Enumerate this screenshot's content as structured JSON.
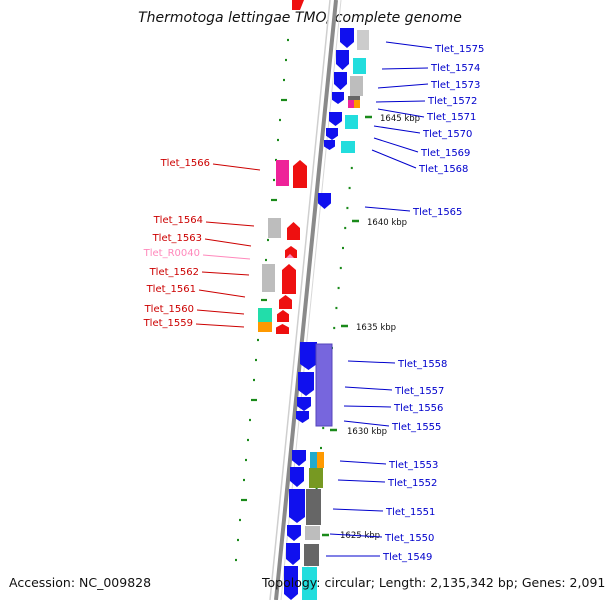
{
  "title": "Thermotoga lettingae TMO, complete genome",
  "accession": "Accession: NC_009828",
  "summary": "Topology: circular; Length: 2,135,342 bp; Genes: 2,091",
  "colors": {
    "backbone": "#8c8c8c",
    "forward_label": "#0000cc",
    "reverse_label": "#cc0000",
    "rna_label": "#ff88bb",
    "tick": "#1a8a1a",
    "cds_forward": "#1010ee",
    "cds_reverse": "#ee1010"
  },
  "scale_labels": [
    "1645 kbp",
    "1640 kbp",
    "1635 kbp",
    "1630 kbp",
    "1625 kbp"
  ],
  "forward_genes": [
    "Tlet_1575",
    "Tlet_1574",
    "Tlet_1573",
    "Tlet_1572",
    "Tlet_1571",
    "Tlet_1570",
    "Tlet_1569",
    "Tlet_1568",
    "Tlet_1565",
    "Tlet_1558",
    "Tlet_1557",
    "Tlet_1556",
    "Tlet_1555",
    "Tlet_1553",
    "Tlet_1552",
    "Tlet_1551",
    "Tlet_1550",
    "Tlet_1549"
  ],
  "reverse_genes": [
    "Tlet_1566",
    "Tlet_1564",
    "Tlet_1563",
    "Tlet_R0040",
    "Tlet_1562",
    "Tlet_1561",
    "Tlet_1560",
    "Tlet_1559"
  ]
}
